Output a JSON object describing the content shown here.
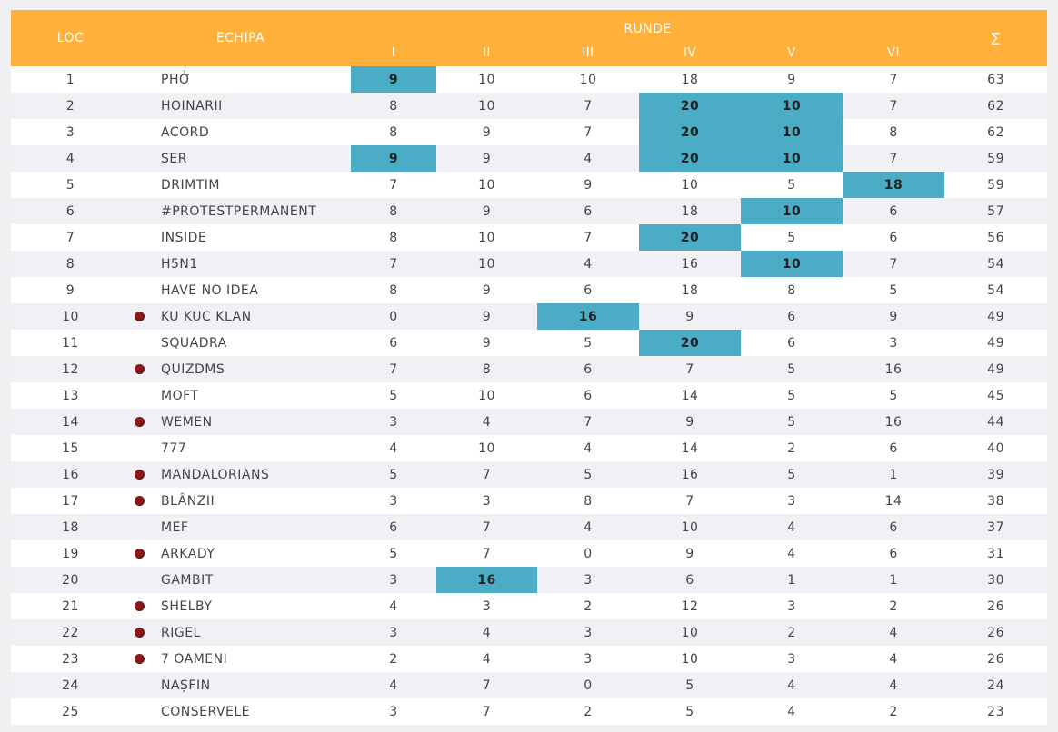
{
  "header": {
    "loc": "LOC",
    "team": "ECHIPA",
    "runde": "RUNDE",
    "rounds": [
      "I",
      "II",
      "III",
      "IV",
      "V",
      "VI"
    ],
    "sum": "∑"
  },
  "colors": {
    "header_bg": "#ffb13b",
    "highlight": "#4bacc6",
    "marker": "#8b1a1a"
  },
  "rows": [
    {
      "loc": "1",
      "team": "PHỞ",
      "marker": false,
      "scores": [
        "9",
        "10",
        "10",
        "18",
        "9",
        "7"
      ],
      "total": "63",
      "highlight": [
        0
      ]
    },
    {
      "loc": "2",
      "team": "HOINARII",
      "marker": false,
      "scores": [
        "8",
        "10",
        "7",
        "20",
        "10",
        "7"
      ],
      "total": "62",
      "highlight": [
        3,
        4
      ]
    },
    {
      "loc": "3",
      "team": "ACORD",
      "marker": false,
      "scores": [
        "8",
        "9",
        "7",
        "20",
        "10",
        "8"
      ],
      "total": "62",
      "highlight": [
        3,
        4
      ]
    },
    {
      "loc": "4",
      "team": "SER",
      "marker": false,
      "scores": [
        "9",
        "9",
        "4",
        "20",
        "10",
        "7"
      ],
      "total": "59",
      "highlight": [
        0,
        3,
        4
      ]
    },
    {
      "loc": "5",
      "team": "DRIMTIM",
      "marker": false,
      "scores": [
        "7",
        "10",
        "9",
        "10",
        "5",
        "18"
      ],
      "total": "59",
      "highlight": [
        5
      ]
    },
    {
      "loc": "6",
      "team": "#PROTESTPERMANENT",
      "marker": false,
      "scores": [
        "8",
        "9",
        "6",
        "18",
        "10",
        "6"
      ],
      "total": "57",
      "highlight": [
        4
      ]
    },
    {
      "loc": "7",
      "team": "INSIDE",
      "marker": false,
      "scores": [
        "8",
        "10",
        "7",
        "20",
        "5",
        "6"
      ],
      "total": "56",
      "highlight": [
        3
      ]
    },
    {
      "loc": "8",
      "team": "H5N1",
      "marker": false,
      "scores": [
        "7",
        "10",
        "4",
        "16",
        "10",
        "7"
      ],
      "total": "54",
      "highlight": [
        4
      ]
    },
    {
      "loc": "9",
      "team": "HAVE NO IDEA",
      "marker": false,
      "scores": [
        "8",
        "9",
        "6",
        "18",
        "8",
        "5"
      ],
      "total": "54",
      "highlight": []
    },
    {
      "loc": "10",
      "team": "KU KUC KLAN",
      "marker": true,
      "scores": [
        "0",
        "9",
        "16",
        "9",
        "6",
        "9"
      ],
      "total": "49",
      "highlight": [
        2
      ]
    },
    {
      "loc": "11",
      "team": "SQUADRA",
      "marker": false,
      "scores": [
        "6",
        "9",
        "5",
        "20",
        "6",
        "3"
      ],
      "total": "49",
      "highlight": [
        3
      ]
    },
    {
      "loc": "12",
      "team": "QUIZDMS",
      "marker": true,
      "scores": [
        "7",
        "8",
        "6",
        "7",
        "5",
        "16"
      ],
      "total": "49",
      "highlight": []
    },
    {
      "loc": "13",
      "team": "MOFT",
      "marker": false,
      "scores": [
        "5",
        "10",
        "6",
        "14",
        "5",
        "5"
      ],
      "total": "45",
      "highlight": []
    },
    {
      "loc": "14",
      "team": "WEMEN",
      "marker": true,
      "scores": [
        "3",
        "4",
        "7",
        "9",
        "5",
        "16"
      ],
      "total": "44",
      "highlight": []
    },
    {
      "loc": "15",
      "team": "777",
      "marker": false,
      "scores": [
        "4",
        "10",
        "4",
        "14",
        "2",
        "6"
      ],
      "total": "40",
      "highlight": []
    },
    {
      "loc": "16",
      "team": "MANDALORIANS",
      "marker": true,
      "scores": [
        "5",
        "7",
        "5",
        "16",
        "5",
        "1"
      ],
      "total": "39",
      "highlight": []
    },
    {
      "loc": "17",
      "team": "BLÂNZII",
      "marker": true,
      "scores": [
        "3",
        "3",
        "8",
        "7",
        "3",
        "14"
      ],
      "total": "38",
      "highlight": []
    },
    {
      "loc": "18",
      "team": "MEF",
      "marker": false,
      "scores": [
        "6",
        "7",
        "4",
        "10",
        "4",
        "6"
      ],
      "total": "37",
      "highlight": []
    },
    {
      "loc": "19",
      "team": "ARKADY",
      "marker": true,
      "scores": [
        "5",
        "7",
        "0",
        "9",
        "4",
        "6"
      ],
      "total": "31",
      "highlight": []
    },
    {
      "loc": "20",
      "team": "GAMBIT",
      "marker": false,
      "scores": [
        "3",
        "16",
        "3",
        "6",
        "1",
        "1"
      ],
      "total": "30",
      "highlight": [
        1
      ]
    },
    {
      "loc": "21",
      "team": "SHELBY",
      "marker": true,
      "scores": [
        "4",
        "3",
        "2",
        "12",
        "3",
        "2"
      ],
      "total": "26",
      "highlight": []
    },
    {
      "loc": "22",
      "team": "RIGEL",
      "marker": true,
      "scores": [
        "3",
        "4",
        "3",
        "10",
        "2",
        "4"
      ],
      "total": "26",
      "highlight": []
    },
    {
      "loc": "23",
      "team": "7 OAMENI",
      "marker": true,
      "scores": [
        "2",
        "4",
        "3",
        "10",
        "3",
        "4"
      ],
      "total": "26",
      "highlight": []
    },
    {
      "loc": "24",
      "team": "NAȘFIN",
      "marker": false,
      "scores": [
        "4",
        "7",
        "0",
        "5",
        "4",
        "4"
      ],
      "total": "24",
      "highlight": []
    },
    {
      "loc": "25",
      "team": "CONSERVELE",
      "marker": false,
      "scores": [
        "3",
        "7",
        "2",
        "5",
        "4",
        "2"
      ],
      "total": "23",
      "highlight": []
    }
  ]
}
